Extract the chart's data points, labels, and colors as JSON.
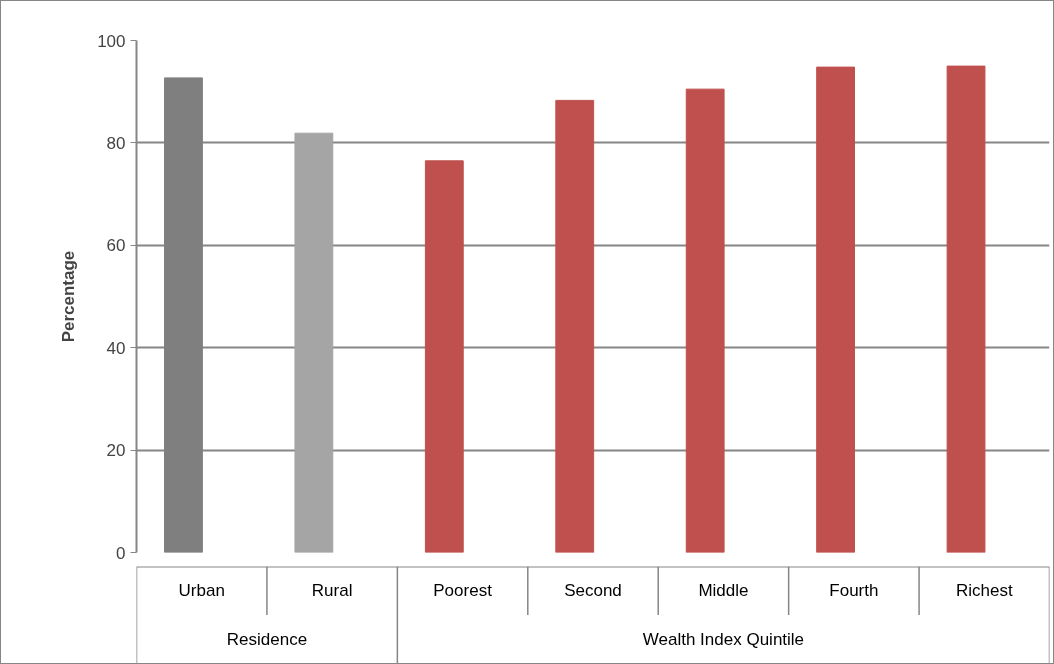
{
  "chart_data": {
    "type": "bar",
    "ylabel": "Percentage",
    "categories": [
      "Urban",
      "Rural",
      "Poorest",
      "Second",
      "Middle",
      "Fourth",
      "Richest"
    ],
    "values": [
      92.7,
      81.9,
      76.5,
      88.3,
      90.5,
      94.8,
      95.0
    ],
    "colors": [
      "#7f7f7f",
      "#a5a5a5",
      "#c0504d",
      "#c0504d",
      "#c0504d",
      "#c0504d",
      "#c0504d"
    ],
    "ylim": [
      0,
      100
    ],
    "yticks": [
      0,
      20,
      40,
      60,
      80,
      100
    ],
    "grid": "y",
    "annotations": [
      "Residence",
      "Wealth Index Quintile"
    ]
  }
}
